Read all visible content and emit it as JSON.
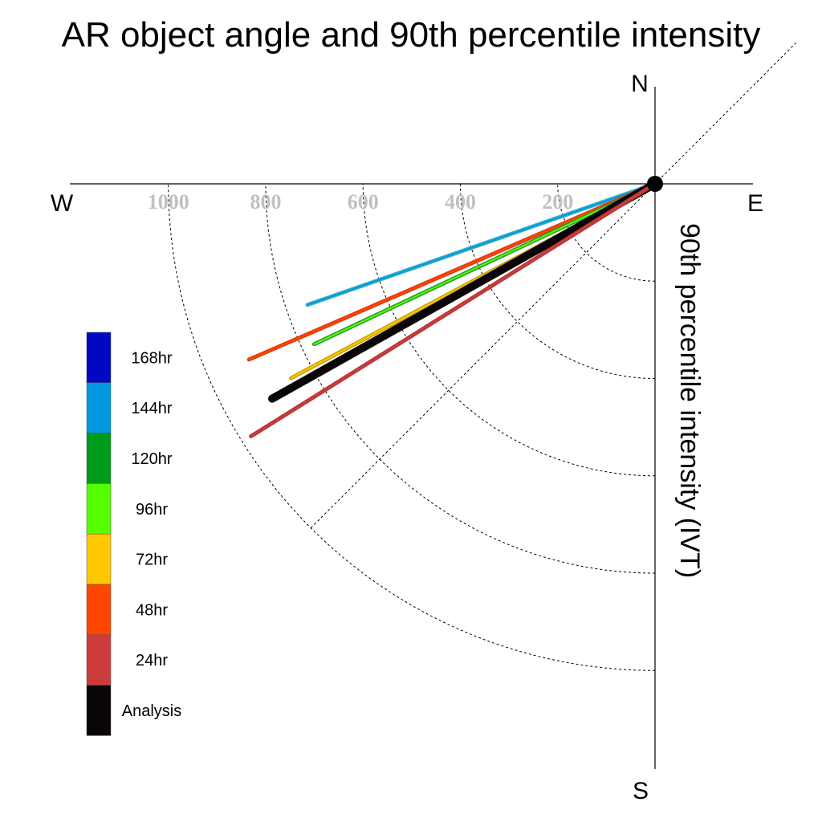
{
  "chart_data": {
    "type": "polar-vector",
    "title": "AR object angle and 90th percentile intensity",
    "ylabel": "90th percentile intensity (IVT)",
    "compass": {
      "north": "N",
      "south": "S",
      "east": "E",
      "west": "W"
    },
    "radial_ticks": [
      200,
      400,
      600,
      800,
      1000
    ],
    "radial_tick_labels": [
      "200",
      "400",
      "600",
      "800",
      "1000"
    ],
    "rlim": [
      0,
      1200
    ],
    "grid": true,
    "legend_position": "left",
    "legend": [
      {
        "label": "168hr",
        "color": "#0008c4"
      },
      {
        "label": "144hr",
        "color": "#0099e0"
      },
      {
        "label": "120hr",
        "color": "#009a1a"
      },
      {
        "label": "96hr",
        "color": "#55ff00"
      },
      {
        "label": "72hr",
        "color": "#ffc800"
      },
      {
        "label": "48hr",
        "color": "#ff4500"
      },
      {
        "label": "24hr",
        "color": "#cc3c3c"
      },
      {
        "label": "Analysis",
        "color": "#0a0508"
      }
    ],
    "series": [
      {
        "label": "144hr",
        "color": "#0099e0",
        "outline": "#3ab0c8",
        "direction_deg": 250.8,
        "intensity": 756
      },
      {
        "label": "48hr",
        "color": "#ff4500",
        "outline": "#e03a10",
        "direction_deg": 246.6,
        "intensity": 909
      },
      {
        "label": "96hr",
        "color": "#55ff00",
        "outline": "#2a9a2a",
        "direction_deg": 244.8,
        "intensity": 774
      },
      {
        "label": "72hr",
        "color": "#ffc800",
        "outline": "#c8a000",
        "direction_deg": 241.9,
        "intensity": 848
      },
      {
        "label": "Analysis",
        "color": "#0a0508",
        "outline": "#0a0508",
        "direction_deg": 240.7,
        "intensity": 902
      },
      {
        "label": "24hr",
        "color": "#cc3c3c",
        "outline": "#b83535",
        "direction_deg": 238.0,
        "intensity": 979
      }
    ]
  }
}
